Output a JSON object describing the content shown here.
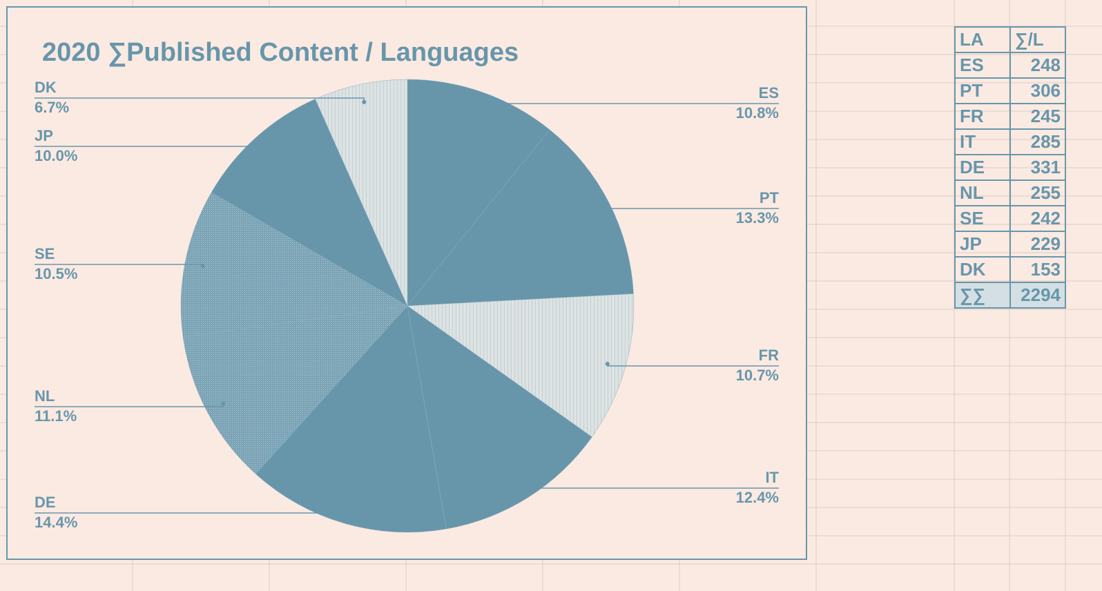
{
  "colors": {
    "accent": "#6796ab",
    "background": "#fbeae2",
    "hatch_fill": "#d8dfe0",
    "gridline": "#d9ccc4"
  },
  "chart_data": {
    "type": "pie",
    "title": "2020 ∑Published Content / Languages",
    "slices": [
      {
        "label": "ES",
        "value": 248,
        "pct_label": "10.8%"
      },
      {
        "label": "PT",
        "value": 306,
        "pct_label": "13.3%"
      },
      {
        "label": "FR",
        "value": 245,
        "pct_label": "10.7%"
      },
      {
        "label": "IT",
        "value": 285,
        "pct_label": "12.4%"
      },
      {
        "label": "DE",
        "value": 331,
        "pct_label": "14.4%"
      },
      {
        "label": "NL",
        "value": 255,
        "pct_label": "11.1%"
      },
      {
        "label": "SE",
        "value": 242,
        "pct_label": "10.5%"
      },
      {
        "label": "JP",
        "value": 229,
        "pct_label": "10.0%"
      },
      {
        "label": "DK",
        "value": 153,
        "pct_label": "6.7%"
      }
    ]
  },
  "table": {
    "headers": [
      "LA",
      "∑/L"
    ],
    "rows": [
      [
        "ES",
        "248"
      ],
      [
        "PT",
        "306"
      ],
      [
        "FR",
        "245"
      ],
      [
        "IT",
        "285"
      ],
      [
        "DE",
        "331"
      ],
      [
        "NL",
        "255"
      ],
      [
        "SE",
        "242"
      ],
      [
        "JP",
        "229"
      ],
      [
        "DK",
        "153"
      ]
    ],
    "total": [
      "∑∑",
      "2294"
    ]
  }
}
